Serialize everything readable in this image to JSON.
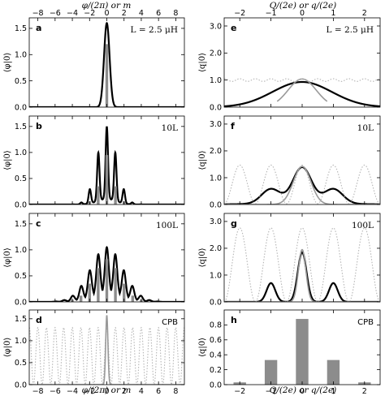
{
  "figure": {
    "left_top_axis_title": "φ/(2π) or m",
    "left_bottom_axis_title": "φ/(2π) or m",
    "right_top_axis_title": "Q/(2e) or q/(2e)",
    "right_bottom_axis_title": "Q/(2e) or q/(2e)",
    "left_ylabel": "⟨φ|0⟩",
    "right_ylabel": "⟨q|0⟩"
  },
  "chart_data": [
    {
      "type": "line",
      "panel": "a",
      "annotation": "L = 2.5 μH",
      "xlim": [
        -9,
        9
      ],
      "ylim": [
        0,
        1.7
      ],
      "xticks": [
        -8,
        -6,
        -4,
        -2,
        0,
        2,
        4,
        6,
        8
      ],
      "yticks": [
        0.0,
        0.5,
        1.0,
        1.5
      ],
      "series": [
        {
          "style": "black-solid",
          "shape": "envelope",
          "center": 0,
          "width": 0.32,
          "peak": 1.6
        },
        {
          "style": "gray-bars",
          "x": [
            0
          ],
          "values": [
            1.2
          ]
        }
      ]
    },
    {
      "type": "line",
      "panel": "b",
      "annotation": "10L",
      "xlim": [
        -9,
        9
      ],
      "ylim": [
        0,
        1.7
      ],
      "xticks": [
        -8,
        -6,
        -4,
        -2,
        0,
        2,
        4,
        6,
        8
      ],
      "yticks": [
        0.0,
        0.5,
        1.0,
        1.5
      ],
      "series": [
        {
          "style": "black-solid",
          "shape": "comb",
          "envelope_width": 1.1,
          "peak_width": 0.14,
          "peak": 1.5,
          "base": 0.07
        },
        {
          "style": "gray-bars",
          "x": [
            -2,
            -1,
            0,
            1,
            2
          ],
          "values": [
            0.06,
            0.35,
            0.95,
            0.35,
            0.06
          ]
        }
      ]
    },
    {
      "type": "line",
      "panel": "c",
      "annotation": "100L",
      "xlim": [
        -9,
        9
      ],
      "ylim": [
        0,
        1.7
      ],
      "xticks": [
        -8,
        -6,
        -4,
        -2,
        0,
        2,
        4,
        6,
        8
      ],
      "yticks": [
        0.0,
        0.5,
        1.0,
        1.5
      ],
      "series": [
        {
          "style": "black-solid",
          "shape": "comb",
          "envelope_width": 1.9,
          "peak_width": 0.22,
          "peak": 1.05,
          "base": 0.15
        },
        {
          "style": "gray-bars",
          "x": [
            -4,
            -3,
            -2,
            -1,
            0,
            1,
            2,
            3,
            4
          ],
          "values": [
            0.04,
            0.12,
            0.35,
            0.65,
            0.82,
            0.65,
            0.35,
            0.12,
            0.04
          ]
        }
      ]
    },
    {
      "type": "line",
      "panel": "d",
      "annotation": "CPB",
      "xlim": [
        -9,
        9
      ],
      "ylim": [
        0,
        1.7
      ],
      "xticks": [
        -8,
        -6,
        -4,
        -2,
        0,
        2,
        4,
        6,
        8
      ],
      "xticklabels": [
        "−8",
        "−6",
        "−4",
        "−2",
        "0",
        "2",
        "4",
        "6",
        "8"
      ],
      "yticks": [
        0.0,
        0.5,
        1.0,
        1.5
      ],
      "series": [
        {
          "style": "gray-dotted",
          "shape": "cosine",
          "period": 1,
          "amplitude": 0.65,
          "offset": 0.65
        },
        {
          "style": "gray-solid",
          "shape": "envelope",
          "center": 0,
          "width": 0.13,
          "peak": 1.58
        }
      ]
    },
    {
      "type": "line",
      "panel": "e",
      "annotation": "L = 2.5 μH",
      "xlim": [
        -2.5,
        2.5
      ],
      "ylim": [
        0,
        3.3
      ],
      "xticks": [
        -2,
        -1,
        0,
        1,
        2
      ],
      "yticks": [
        0.0,
        1.0,
        2.0,
        3.0
      ],
      "series": [
        {
          "style": "black-solid",
          "shape": "gaussian",
          "centers": [
            0
          ],
          "width": 0.95,
          "peak": 0.93
        },
        {
          "style": "gray-solid",
          "shape": "gaussian",
          "centers": [
            0
          ],
          "width": 0.45,
          "peak": 1.04,
          "xrange": [
            -0.8,
            0.8
          ]
        },
        {
          "style": "gray-dotted",
          "shape": "cosine",
          "period": 0.5,
          "amplitude": 0.05,
          "offset": 1.0
        }
      ]
    },
    {
      "type": "line",
      "panel": "f",
      "annotation": "10L",
      "xlim": [
        -2.5,
        2.5
      ],
      "ylim": [
        0,
        3.3
      ],
      "xticks": [
        -2,
        -1,
        0,
        1,
        2
      ],
      "yticks": [
        0.0,
        1.0,
        2.0,
        3.0
      ],
      "series": [
        {
          "style": "black-solid",
          "shape": "gaussian",
          "centers": [
            -1,
            0,
            1
          ],
          "width": 0.3,
          "peaks": [
            0.55,
            1.35,
            0.55
          ],
          "base": 0.04
        },
        {
          "style": "gray-solid",
          "shape": "gaussian",
          "centers": [
            0
          ],
          "width": 0.28,
          "peak": 1.42
        },
        {
          "style": "gray-dotted",
          "shape": "cosine",
          "period": 1,
          "amplitude": 0.72,
          "offset": 0.75
        }
      ]
    },
    {
      "type": "line",
      "panel": "g",
      "annotation": "100L",
      "xlim": [
        -2.5,
        2.5
      ],
      "ylim": [
        0,
        3.3
      ],
      "xticks": [
        -2,
        -1,
        0,
        1,
        2
      ],
      "yticks": [
        0.0,
        1.0,
        2.0,
        3.0
      ],
      "series": [
        {
          "style": "black-solid",
          "shape": "gaussian",
          "centers": [
            -1,
            0,
            1
          ],
          "width": 0.14,
          "peaks": [
            0.7,
            1.85,
            0.7
          ],
          "base": 0.0
        },
        {
          "style": "gray-solid",
          "shape": "gaussian",
          "centers": [
            0
          ],
          "width": 0.12,
          "peak": 1.95
        },
        {
          "style": "gray-dotted",
          "shape": "cosine",
          "period": 1,
          "amplitude": 1.38,
          "offset": 1.38
        }
      ]
    },
    {
      "type": "bar",
      "panel": "h",
      "annotation": "CPB",
      "xlim": [
        -2.5,
        2.5
      ],
      "ylim": [
        0,
        1.0
      ],
      "xticks": [
        -2,
        -1,
        0,
        1,
        2
      ],
      "xticklabels": [
        "−2",
        "−1",
        "0",
        "1",
        "2"
      ],
      "yticks": [
        0.0,
        0.2,
        0.4,
        0.6,
        0.8
      ],
      "categories": [
        -2,
        -1,
        0,
        1,
        2
      ],
      "values": [
        0.03,
        0.33,
        0.88,
        0.33,
        0.03
      ]
    }
  ]
}
